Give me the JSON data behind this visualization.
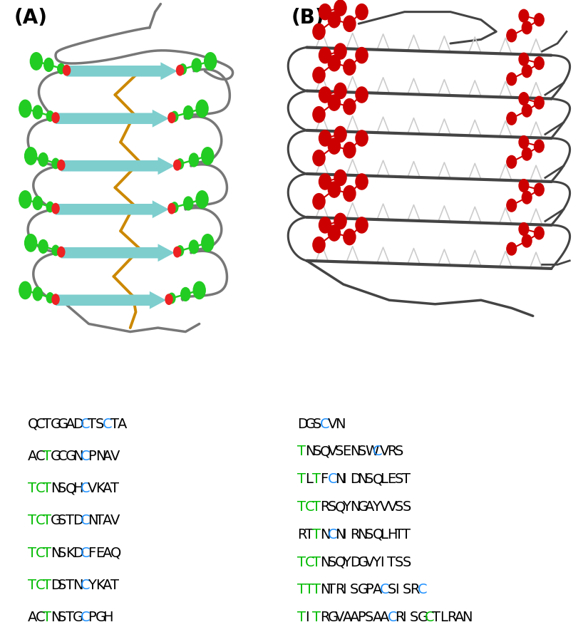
{
  "panel_A_label": "(A)",
  "panel_B_label": "(B)",
  "seq_A": [
    {
      "chars": [
        "Q",
        "C",
        "T",
        "G",
        "G",
        "A",
        "D",
        "C",
        "T",
        "S",
        "C",
        "T",
        "A"
      ],
      "colors": [
        "black",
        "black",
        "black",
        "black",
        "black",
        "black",
        "black",
        "#1e90ff",
        "black",
        "black",
        "#1e90ff",
        "black",
        "black"
      ]
    },
    {
      "chars": [
        "A",
        "C",
        "T",
        "G",
        "C",
        "G",
        "N",
        "C",
        "P",
        "N",
        "A",
        "V"
      ],
      "colors": [
        "black",
        "black",
        "#00bb00",
        "black",
        "black",
        "black",
        "black",
        "#1e90ff",
        "black",
        "black",
        "black",
        "black"
      ]
    },
    {
      "chars": [
        "T",
        "C",
        "T",
        "N",
        "S",
        "Q",
        "H",
        "C",
        "V",
        "K",
        "A",
        "T"
      ],
      "colors": [
        "#00bb00",
        "#00bb00",
        "#00bb00",
        "black",
        "black",
        "black",
        "black",
        "#1e90ff",
        "black",
        "black",
        "black",
        "black"
      ]
    },
    {
      "chars": [
        "T",
        "C",
        "T",
        "G",
        "S",
        "T",
        "D",
        "C",
        "N",
        "T",
        "A",
        "V"
      ],
      "colors": [
        "#00bb00",
        "#00bb00",
        "#00bb00",
        "black",
        "black",
        "black",
        "black",
        "#1e90ff",
        "black",
        "black",
        "black",
        "black"
      ]
    },
    {
      "chars": [
        "T",
        "C",
        "T",
        "N",
        "S",
        "K",
        "D",
        "C",
        "F",
        "E",
        "A",
        "Q"
      ],
      "colors": [
        "#00bb00",
        "#00bb00",
        "#00bb00",
        "black",
        "black",
        "black",
        "black",
        "#1e90ff",
        "black",
        "black",
        "black",
        "black"
      ]
    },
    {
      "chars": [
        "T",
        "C",
        "T",
        "D",
        "S",
        "T",
        "N",
        "C",
        "Y",
        "K",
        "A",
        "T"
      ],
      "colors": [
        "#00bb00",
        "#00bb00",
        "#00bb00",
        "black",
        "black",
        "black",
        "black",
        "#1e90ff",
        "black",
        "black",
        "black",
        "black"
      ]
    },
    {
      "chars": [
        "A",
        "C",
        "T",
        "N",
        "S",
        "T",
        "G",
        "C",
        "P",
        "G",
        "H"
      ],
      "colors": [
        "black",
        "black",
        "#00bb00",
        "black",
        "black",
        "black",
        "black",
        "#1e90ff",
        "black",
        "black",
        "black"
      ]
    }
  ],
  "seq_B": [
    {
      "chars": [
        "D",
        "G",
        "S",
        "C",
        "V",
        "N"
      ],
      "colors": [
        "black",
        "black",
        "black",
        "#1e90ff",
        "black",
        "black"
      ]
    },
    {
      "chars": [
        "T",
        "N",
        "S",
        "Q",
        "V",
        "S",
        "E",
        "N",
        "S",
        "W",
        "C",
        "V",
        "R",
        "S"
      ],
      "colors": [
        "#00bb00",
        "black",
        "black",
        "black",
        "black",
        "black",
        "black",
        "black",
        "black",
        "black",
        "#1e90ff",
        "black",
        "black",
        "black"
      ]
    },
    {
      "chars": [
        "T",
        "L",
        "T",
        "F",
        "C",
        "N",
        "I",
        "D",
        "N",
        "S",
        "Q",
        "L",
        "E",
        "S",
        "T"
      ],
      "colors": [
        "#00bb00",
        "black",
        "#00bb00",
        "black",
        "#1e90ff",
        "black",
        "black",
        "black",
        "black",
        "black",
        "black",
        "black",
        "black",
        "black",
        "black"
      ]
    },
    {
      "chars": [
        "T",
        "C",
        "T",
        "R",
        "S",
        "Q",
        "Y",
        "N",
        "G",
        "A",
        "Y",
        "V",
        "V",
        "S",
        "S"
      ],
      "colors": [
        "#00bb00",
        "#00bb00",
        "#00bb00",
        "black",
        "black",
        "black",
        "black",
        "black",
        "black",
        "black",
        "black",
        "black",
        "black",
        "black",
        "black"
      ]
    },
    {
      "chars": [
        "R",
        "T",
        "T",
        "N",
        "C",
        "N",
        "I",
        "R",
        "N",
        "S",
        "Q",
        "L",
        "H",
        "T",
        "T"
      ],
      "colors": [
        "black",
        "black",
        "#00bb00",
        "black",
        "#1e90ff",
        "black",
        "black",
        "black",
        "black",
        "black",
        "black",
        "black",
        "black",
        "black",
        "black"
      ]
    },
    {
      "chars": [
        "T",
        "C",
        "T",
        "N",
        "S",
        "Q",
        "Y",
        "D",
        "G",
        "V",
        "Y",
        "I",
        "T",
        "S",
        "S"
      ],
      "colors": [
        "#00bb00",
        "#00bb00",
        "#00bb00",
        "black",
        "black",
        "black",
        "black",
        "black",
        "black",
        "black",
        "black",
        "black",
        "black",
        "black",
        "black"
      ]
    },
    {
      "chars": [
        "T",
        "T",
        "T",
        "N",
        "T",
        "R",
        "I",
        "S",
        "G",
        "P",
        "A",
        "C",
        "S",
        "I",
        "S",
        "R",
        "C"
      ],
      "colors": [
        "#00bb00",
        "#00bb00",
        "#00bb00",
        "black",
        "black",
        "black",
        "black",
        "black",
        "black",
        "black",
        "black",
        "#1e90ff",
        "black",
        "black",
        "black",
        "black",
        "#1e90ff"
      ]
    },
    {
      "chars": [
        "T",
        "I",
        "T",
        "R",
        "G",
        "V",
        "A",
        "A",
        "P",
        "S",
        "A",
        "A",
        "C",
        "R",
        "I",
        "S",
        "G",
        "C",
        "T",
        "L",
        "R",
        "A",
        "N"
      ],
      "colors": [
        "#00bb00",
        "black",
        "#00bb00",
        "black",
        "black",
        "black",
        "black",
        "black",
        "black",
        "black",
        "black",
        "black",
        "#1e90ff",
        "black",
        "black",
        "black",
        "black",
        "#00bb00",
        "black",
        "black",
        "black",
        "black",
        "black"
      ]
    }
  ],
  "bg_color": "white",
  "font_size_seq": 14,
  "font_size_label": 20
}
